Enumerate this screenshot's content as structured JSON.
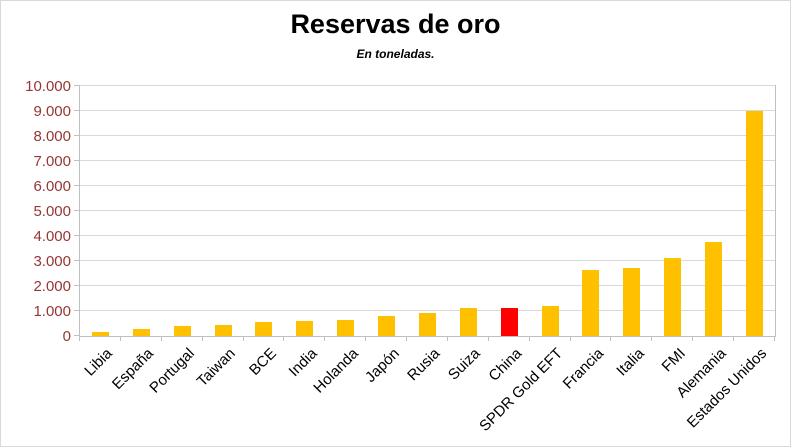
{
  "chart_data": {
    "type": "bar",
    "title": "Reservas de oro",
    "subtitle": "En toneladas.",
    "categories": [
      "Libia",
      "España",
      "Portugal",
      "Taiwan",
      "BCE",
      "India",
      "Holanda",
      "Japón",
      "Rusia",
      "Suiza",
      "China",
      "SPDR Gold EFT",
      "Francia",
      "Italia",
      "FMI",
      "Alemania",
      "Estados Unidos"
    ],
    "values": [
      150,
      280,
      400,
      450,
      550,
      600,
      650,
      800,
      900,
      1100,
      1100,
      1200,
      2650,
      2700,
      3100,
      3750,
      9000
    ],
    "bar_color": "#FFC000",
    "highlight": {
      "category": "China",
      "color": "#FF0000"
    },
    "ylim": [
      0,
      10000
    ],
    "ytick_step": 1000,
    "ytick_labels": [
      "0",
      "1.000",
      "2.000",
      "3.000",
      "4.000",
      "5.000",
      "6.000",
      "7.000",
      "8.000",
      "9.000",
      "10.000"
    ],
    "grid": true,
    "legend": "none",
    "ytick_color": "#963634",
    "xtick_color": "#000000"
  }
}
